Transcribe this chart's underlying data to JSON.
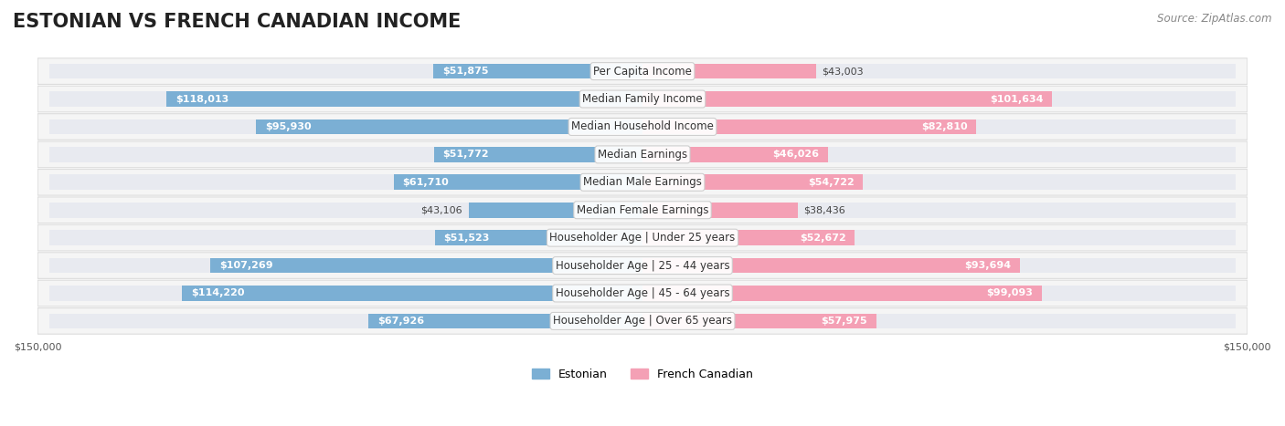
{
  "title": "ESTONIAN VS FRENCH CANADIAN INCOME",
  "source": "Source: ZipAtlas.com",
  "categories": [
    "Per Capita Income",
    "Median Family Income",
    "Median Household Income",
    "Median Earnings",
    "Median Male Earnings",
    "Median Female Earnings",
    "Householder Age | Under 25 years",
    "Householder Age | 25 - 44 years",
    "Householder Age | 45 - 64 years",
    "Householder Age | Over 65 years"
  ],
  "estonian_values": [
    51875,
    118013,
    95930,
    51772,
    61710,
    43106,
    51523,
    107269,
    114220,
    67926
  ],
  "french_canadian_values": [
    43003,
    101634,
    82810,
    46026,
    54722,
    38436,
    52672,
    93694,
    99093,
    57975
  ],
  "estonian_color": "#7bafd4",
  "estonian_color_dark": "#5b9bbf",
  "french_canadian_color": "#f4a0b5",
  "french_canadian_color_dark": "#e8799a",
  "bar_bg_color": "#e8eaf0",
  "row_bg_color": "#f5f5f5",
  "row_border_color": "#dddddd",
  "max_value": 150000,
  "title_fontsize": 15,
  "label_fontsize": 8.5,
  "value_fontsize": 8,
  "legend_fontsize": 9,
  "source_fontsize": 8.5,
  "axis_label_color": "#555555",
  "title_color": "#222222",
  "source_color": "#888888"
}
